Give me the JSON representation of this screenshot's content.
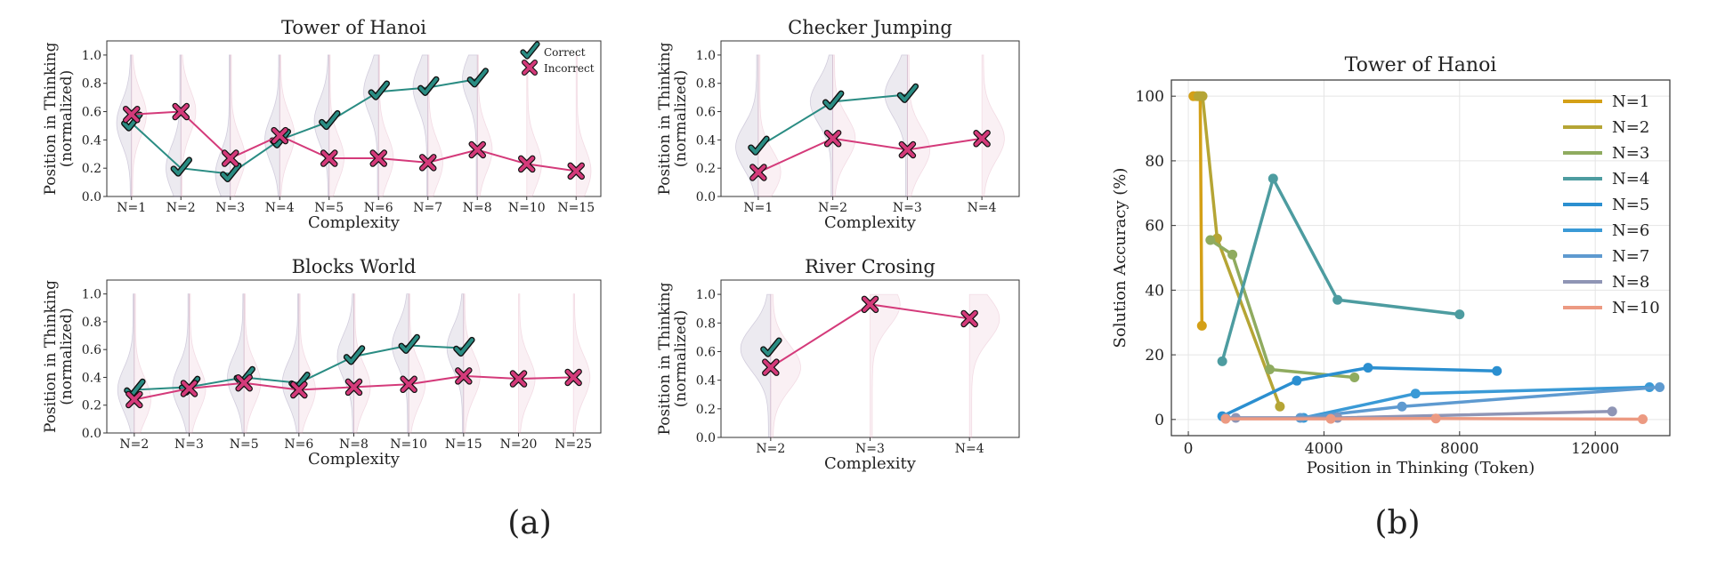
{
  "panel_labels": [
    "(a)",
    "(b)"
  ],
  "chart_data": [
    {
      "type": "line",
      "title": "Tower of Hanoi",
      "xlabel": "Complexity",
      "ylabel": "Position in Thinking\n(normalized)",
      "categories": [
        "N=1",
        "N=2",
        "N=3",
        "N=4",
        "N=5",
        "N=6",
        "N=7",
        "N=8",
        "N=10",
        "N=15"
      ],
      "ylim": [
        0,
        1.1
      ],
      "yticks": [
        0.0,
        0.2,
        0.4,
        0.6,
        0.8,
        1.0
      ],
      "legend": {
        "position": "top-right",
        "entries": [
          "Correct",
          "Incorrect"
        ]
      },
      "series": [
        {
          "name": "Correct",
          "color": "#2a8c83",
          "marker": "check",
          "values": [
            0.52,
            0.2,
            0.16,
            0.4,
            0.53,
            0.74,
            0.77,
            0.83,
            null,
            null
          ]
        },
        {
          "name": "Incorrect",
          "color": "#d43a7a",
          "marker": "cross",
          "values": [
            0.58,
            0.6,
            0.27,
            0.43,
            0.27,
            0.27,
            0.24,
            0.33,
            0.23,
            0.18
          ]
        }
      ]
    },
    {
      "type": "line",
      "title": "Checker Jumping",
      "xlabel": "Complexity",
      "ylabel": "Position in Thinking\n(normalized)",
      "categories": [
        "N=1",
        "N=2",
        "N=3",
        "N=4"
      ],
      "ylim": [
        0,
        1.1
      ],
      "yticks": [
        0.0,
        0.2,
        0.4,
        0.6,
        0.8,
        1.0
      ],
      "series": [
        {
          "name": "Correct",
          "color": "#2a8c83",
          "marker": "check",
          "values": [
            0.35,
            0.67,
            0.72,
            null
          ]
        },
        {
          "name": "Incorrect",
          "color": "#d43a7a",
          "marker": "cross",
          "values": [
            0.17,
            0.41,
            0.33,
            0.41
          ]
        }
      ]
    },
    {
      "type": "line",
      "title": "Blocks World",
      "xlabel": "Complexity",
      "ylabel": "Position in Thinking\n(normalized)",
      "categories": [
        "N=2",
        "N=3",
        "N=5",
        "N=6",
        "N=8",
        "N=10",
        "N=15",
        "N=20",
        "N=25"
      ],
      "ylim": [
        0,
        1.1
      ],
      "yticks": [
        0.0,
        0.2,
        0.4,
        0.6,
        0.8,
        1.0
      ],
      "series": [
        {
          "name": "Correct",
          "color": "#2a8c83",
          "marker": "check",
          "values": [
            0.31,
            0.33,
            0.4,
            0.36,
            0.55,
            0.63,
            0.61,
            null,
            null
          ]
        },
        {
          "name": "Incorrect",
          "color": "#d43a7a",
          "marker": "cross",
          "values": [
            0.24,
            0.32,
            0.36,
            0.31,
            0.33,
            0.35,
            0.41,
            0.39,
            0.4
          ]
        }
      ]
    },
    {
      "type": "line",
      "title": "River Crosing",
      "xlabel": "Complexity",
      "ylabel": "Position in Thinking\n(normalized)",
      "categories": [
        "N=2",
        "N=3",
        "N=4"
      ],
      "ylim": [
        0,
        1.1
      ],
      "yticks": [
        0.0,
        0.2,
        0.4,
        0.6,
        0.8,
        1.0
      ],
      "series": [
        {
          "name": "Correct",
          "color": "#2a8c83",
          "marker": "check",
          "values": [
            0.62,
            null,
            null
          ]
        },
        {
          "name": "Incorrect",
          "color": "#d43a7a",
          "marker": "cross",
          "values": [
            0.49,
            0.93,
            0.83
          ]
        }
      ]
    },
    {
      "type": "line",
      "title": "Tower of Hanoi",
      "xlabel": "Position in Thinking (Token)",
      "ylabel": "Solution Accuracy (%)",
      "xlim": [
        -500,
        14200
      ],
      "ylim": [
        -5,
        105
      ],
      "xticks": [
        0,
        4000,
        8000,
        12000
      ],
      "yticks": [
        0,
        20,
        40,
        60,
        80,
        100
      ],
      "grid": true,
      "legend": {
        "position": "top-right"
      },
      "series": [
        {
          "name": "N=1",
          "color": "#d4a017",
          "points": [
            [
              150,
              100
            ],
            [
              250,
              100
            ],
            [
              350,
              100
            ],
            [
              400,
              29
            ]
          ]
        },
        {
          "name": "N=2",
          "color": "#b5a535",
          "points": [
            [
              300,
              100
            ],
            [
              420,
              100
            ],
            [
              850,
              56
            ],
            [
              2700,
              4
            ]
          ]
        },
        {
          "name": "N=3",
          "color": "#8fab5f",
          "points": [
            [
              650,
              55.5
            ],
            [
              1300,
              51
            ],
            [
              2400,
              15.5
            ],
            [
              4900,
              13
            ]
          ]
        },
        {
          "name": "N=4",
          "color": "#4d9ca0",
          "points": [
            [
              1000,
              18
            ],
            [
              2500,
              74.5
            ],
            [
              4400,
              37
            ],
            [
              8000,
              32.5
            ]
          ]
        },
        {
          "name": "N=5",
          "color": "#2b8fd0",
          "points": [
            [
              1000,
              1
            ],
            [
              3200,
              12
            ],
            [
              5300,
              16
            ],
            [
              9100,
              15
            ]
          ]
        },
        {
          "name": "N=6",
          "color": "#3a9ad6",
          "points": [
            [
              3400,
              0.5
            ],
            [
              6700,
              8
            ],
            [
              13600,
              10
            ]
          ]
        },
        {
          "name": "N=7",
          "color": "#5e9ad0",
          "points": [
            [
              1100,
              0.5
            ],
            [
              3300,
              0.5
            ],
            [
              6300,
              4
            ],
            [
              13900,
              10
            ]
          ]
        },
        {
          "name": "N=8",
          "color": "#8f95b5",
          "points": [
            [
              1400,
              0.5
            ],
            [
              4400,
              0.5
            ],
            [
              12500,
              2.5
            ]
          ]
        },
        {
          "name": "N=10",
          "color": "#ec9a82",
          "points": [
            [
              1100,
              0.2
            ],
            [
              4200,
              0.2
            ],
            [
              7300,
              0.3
            ],
            [
              13400,
              0.1
            ]
          ]
        }
      ]
    }
  ]
}
